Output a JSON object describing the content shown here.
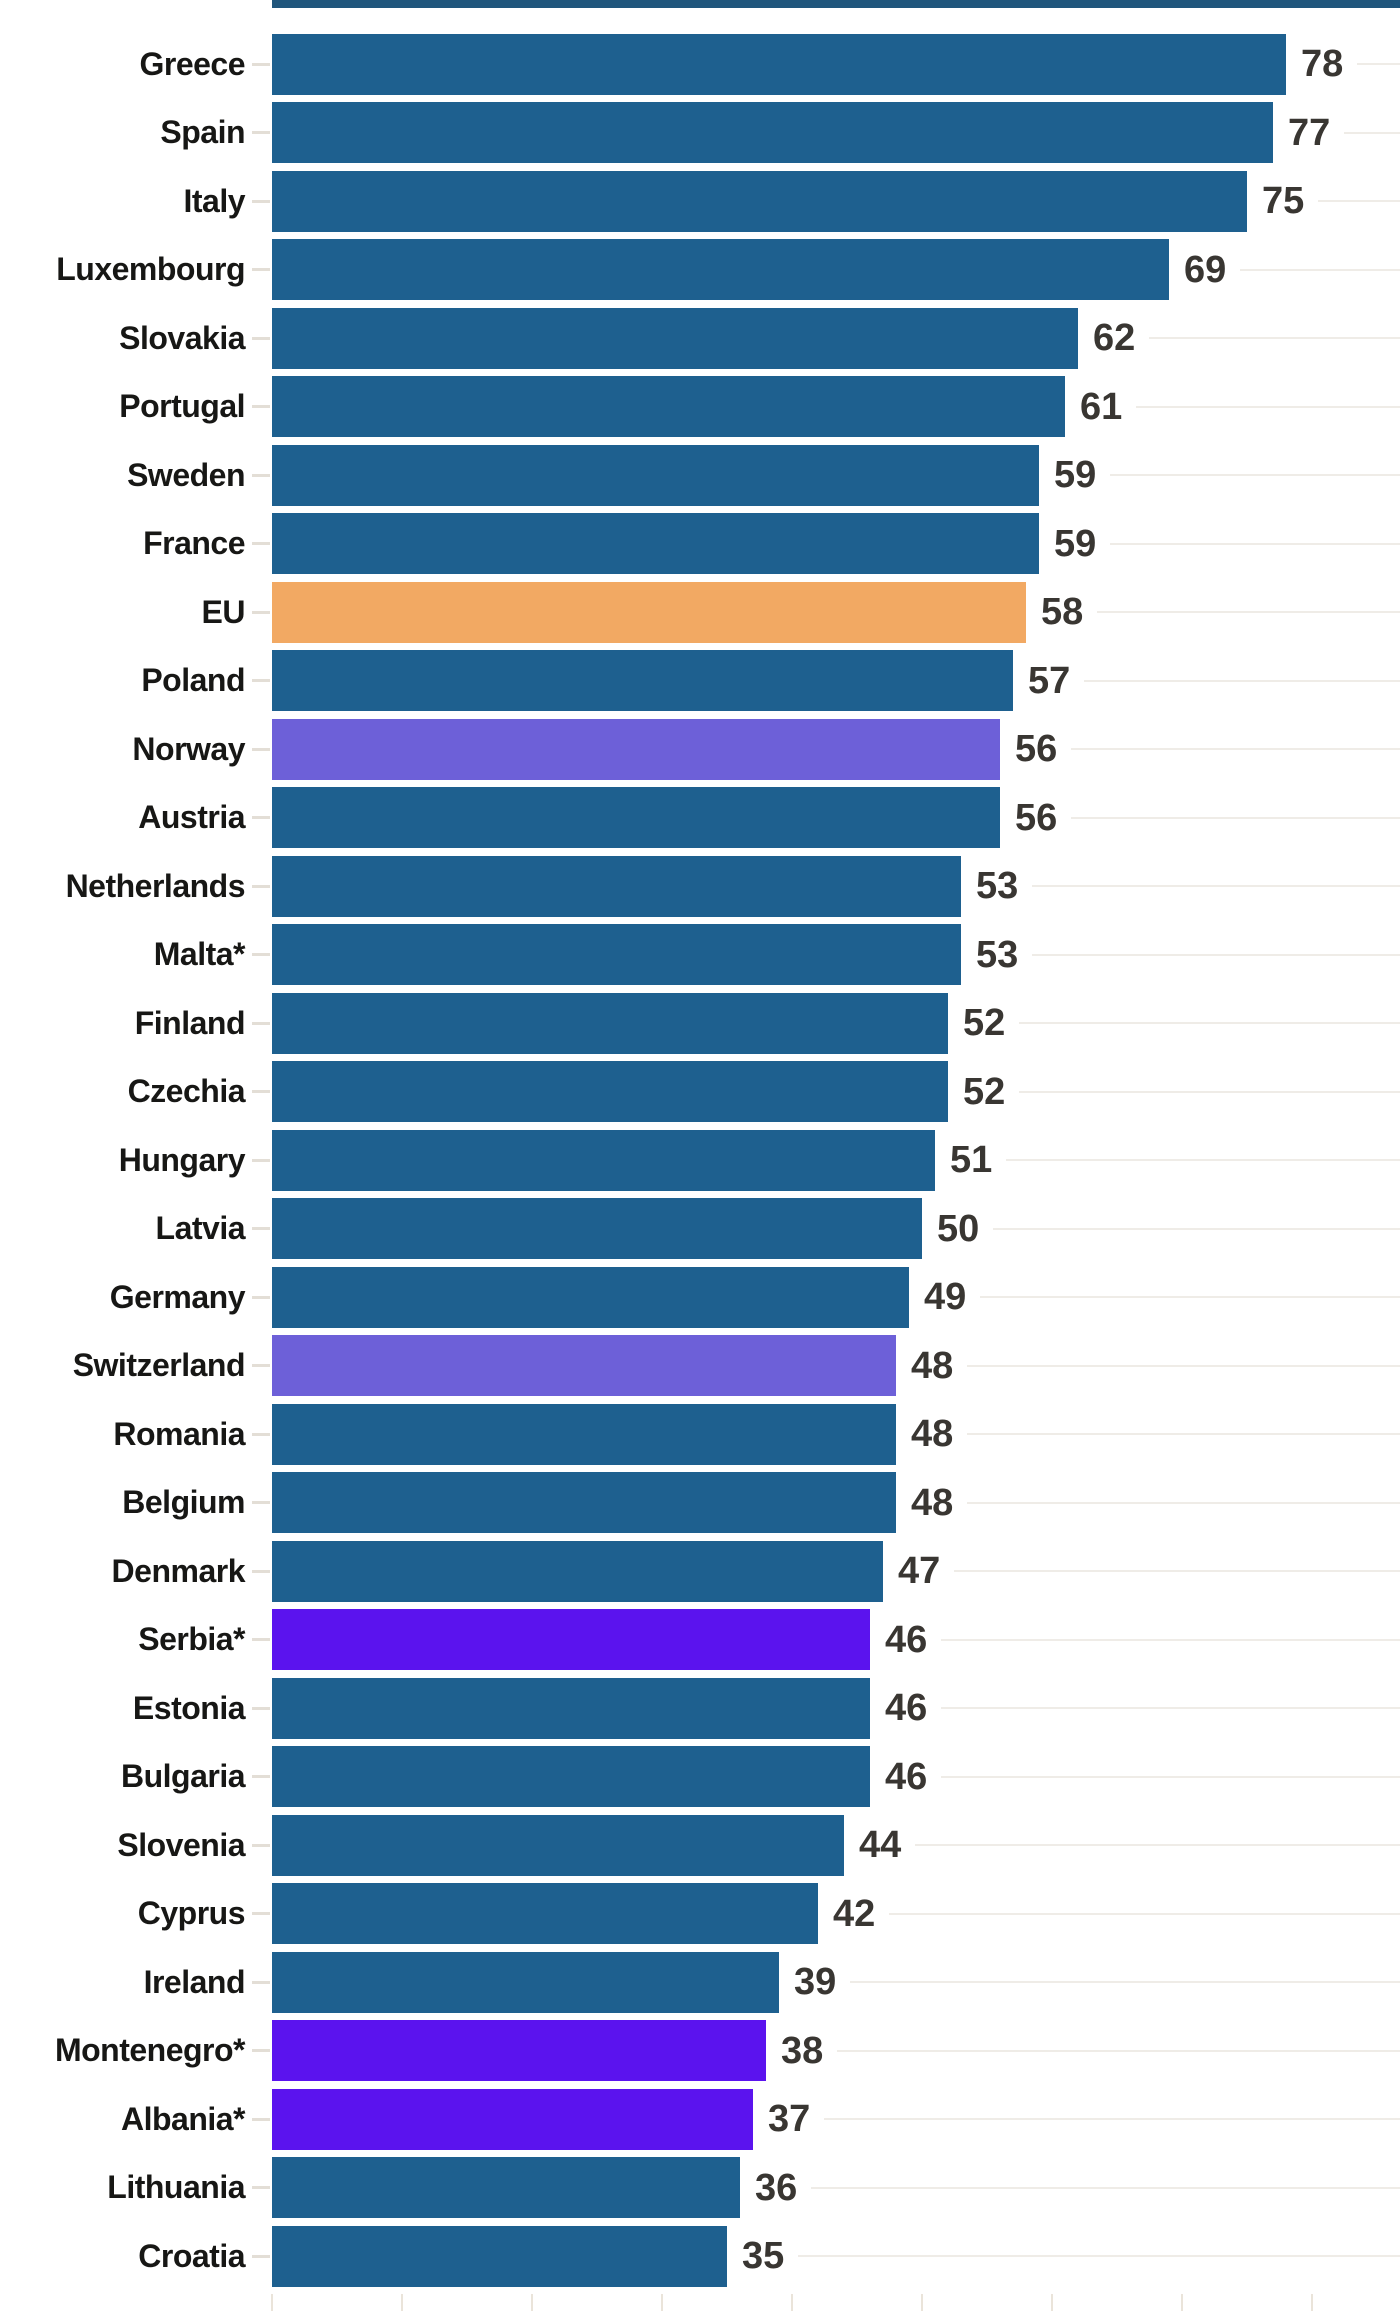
{
  "chart_data": {
    "type": "bar",
    "orientation": "horizontal",
    "title": "",
    "xlabel": "",
    "ylabel": "",
    "xlim": [
      0,
      86.8
    ],
    "x_ticks": [
      0,
      10,
      20,
      30,
      40,
      50,
      60,
      70,
      80
    ],
    "grid": "faint horizontal row lines right of value labels; faint x ticks at bottom",
    "legend": "none",
    "value_label_position": "right of bar end",
    "rows": [
      {
        "label": "Greece",
        "value": 78,
        "group": "member"
      },
      {
        "label": "Spain",
        "value": 77,
        "group": "member"
      },
      {
        "label": "Italy",
        "value": 75,
        "group": "member"
      },
      {
        "label": "Luxembourg",
        "value": 69,
        "group": "member"
      },
      {
        "label": "Slovakia",
        "value": 62,
        "group": "member"
      },
      {
        "label": "Portugal",
        "value": 61,
        "group": "member"
      },
      {
        "label": "Sweden",
        "value": 59,
        "group": "member"
      },
      {
        "label": "France",
        "value": 59,
        "group": "member"
      },
      {
        "label": "EU",
        "value": 58,
        "group": "eu"
      },
      {
        "label": "Poland",
        "value": 57,
        "group": "member"
      },
      {
        "label": "Norway",
        "value": 56,
        "group": "efta"
      },
      {
        "label": "Austria",
        "value": 56,
        "group": "member"
      },
      {
        "label": "Netherlands",
        "value": 53,
        "group": "member"
      },
      {
        "label": "Malta*",
        "value": 53,
        "group": "member"
      },
      {
        "label": "Finland",
        "value": 52,
        "group": "member"
      },
      {
        "label": "Czechia",
        "value": 52,
        "group": "member"
      },
      {
        "label": "Hungary",
        "value": 51,
        "group": "member"
      },
      {
        "label": "Latvia",
        "value": 50,
        "group": "member"
      },
      {
        "label": "Germany",
        "value": 49,
        "group": "member"
      },
      {
        "label": "Switzerland",
        "value": 48,
        "group": "efta"
      },
      {
        "label": "Romania",
        "value": 48,
        "group": "member"
      },
      {
        "label": "Belgium",
        "value": 48,
        "group": "member"
      },
      {
        "label": "Denmark",
        "value": 47,
        "group": "member"
      },
      {
        "label": "Serbia*",
        "value": 46,
        "group": "candidate"
      },
      {
        "label": "Estonia",
        "value": 46,
        "group": "member"
      },
      {
        "label": "Bulgaria",
        "value": 46,
        "group": "member"
      },
      {
        "label": "Slovenia",
        "value": 44,
        "group": "member"
      },
      {
        "label": "Cyprus",
        "value": 42,
        "group": "member"
      },
      {
        "label": "Ireland",
        "value": 39,
        "group": "member"
      },
      {
        "label": "Montenegro*",
        "value": 38,
        "group": "candidate"
      },
      {
        "label": "Albania*",
        "value": 37,
        "group": "candidate"
      },
      {
        "label": "Lithuania",
        "value": 36,
        "group": "member"
      },
      {
        "label": "Croatia",
        "value": 35,
        "group": "member"
      }
    ],
    "group_colors": {
      "member": "#1e608f",
      "eu": "#f2a963",
      "efta": "#6d60d8",
      "candidate": "#5b13ee"
    }
  },
  "colors": {
    "background": "#ffffff",
    "gridline": "#efece7",
    "leader_dash": "#e3ded6",
    "axis_tick": "#eae4da",
    "label_text": "#171715",
    "value_text": "#393632",
    "top_strip": "#20567c"
  }
}
